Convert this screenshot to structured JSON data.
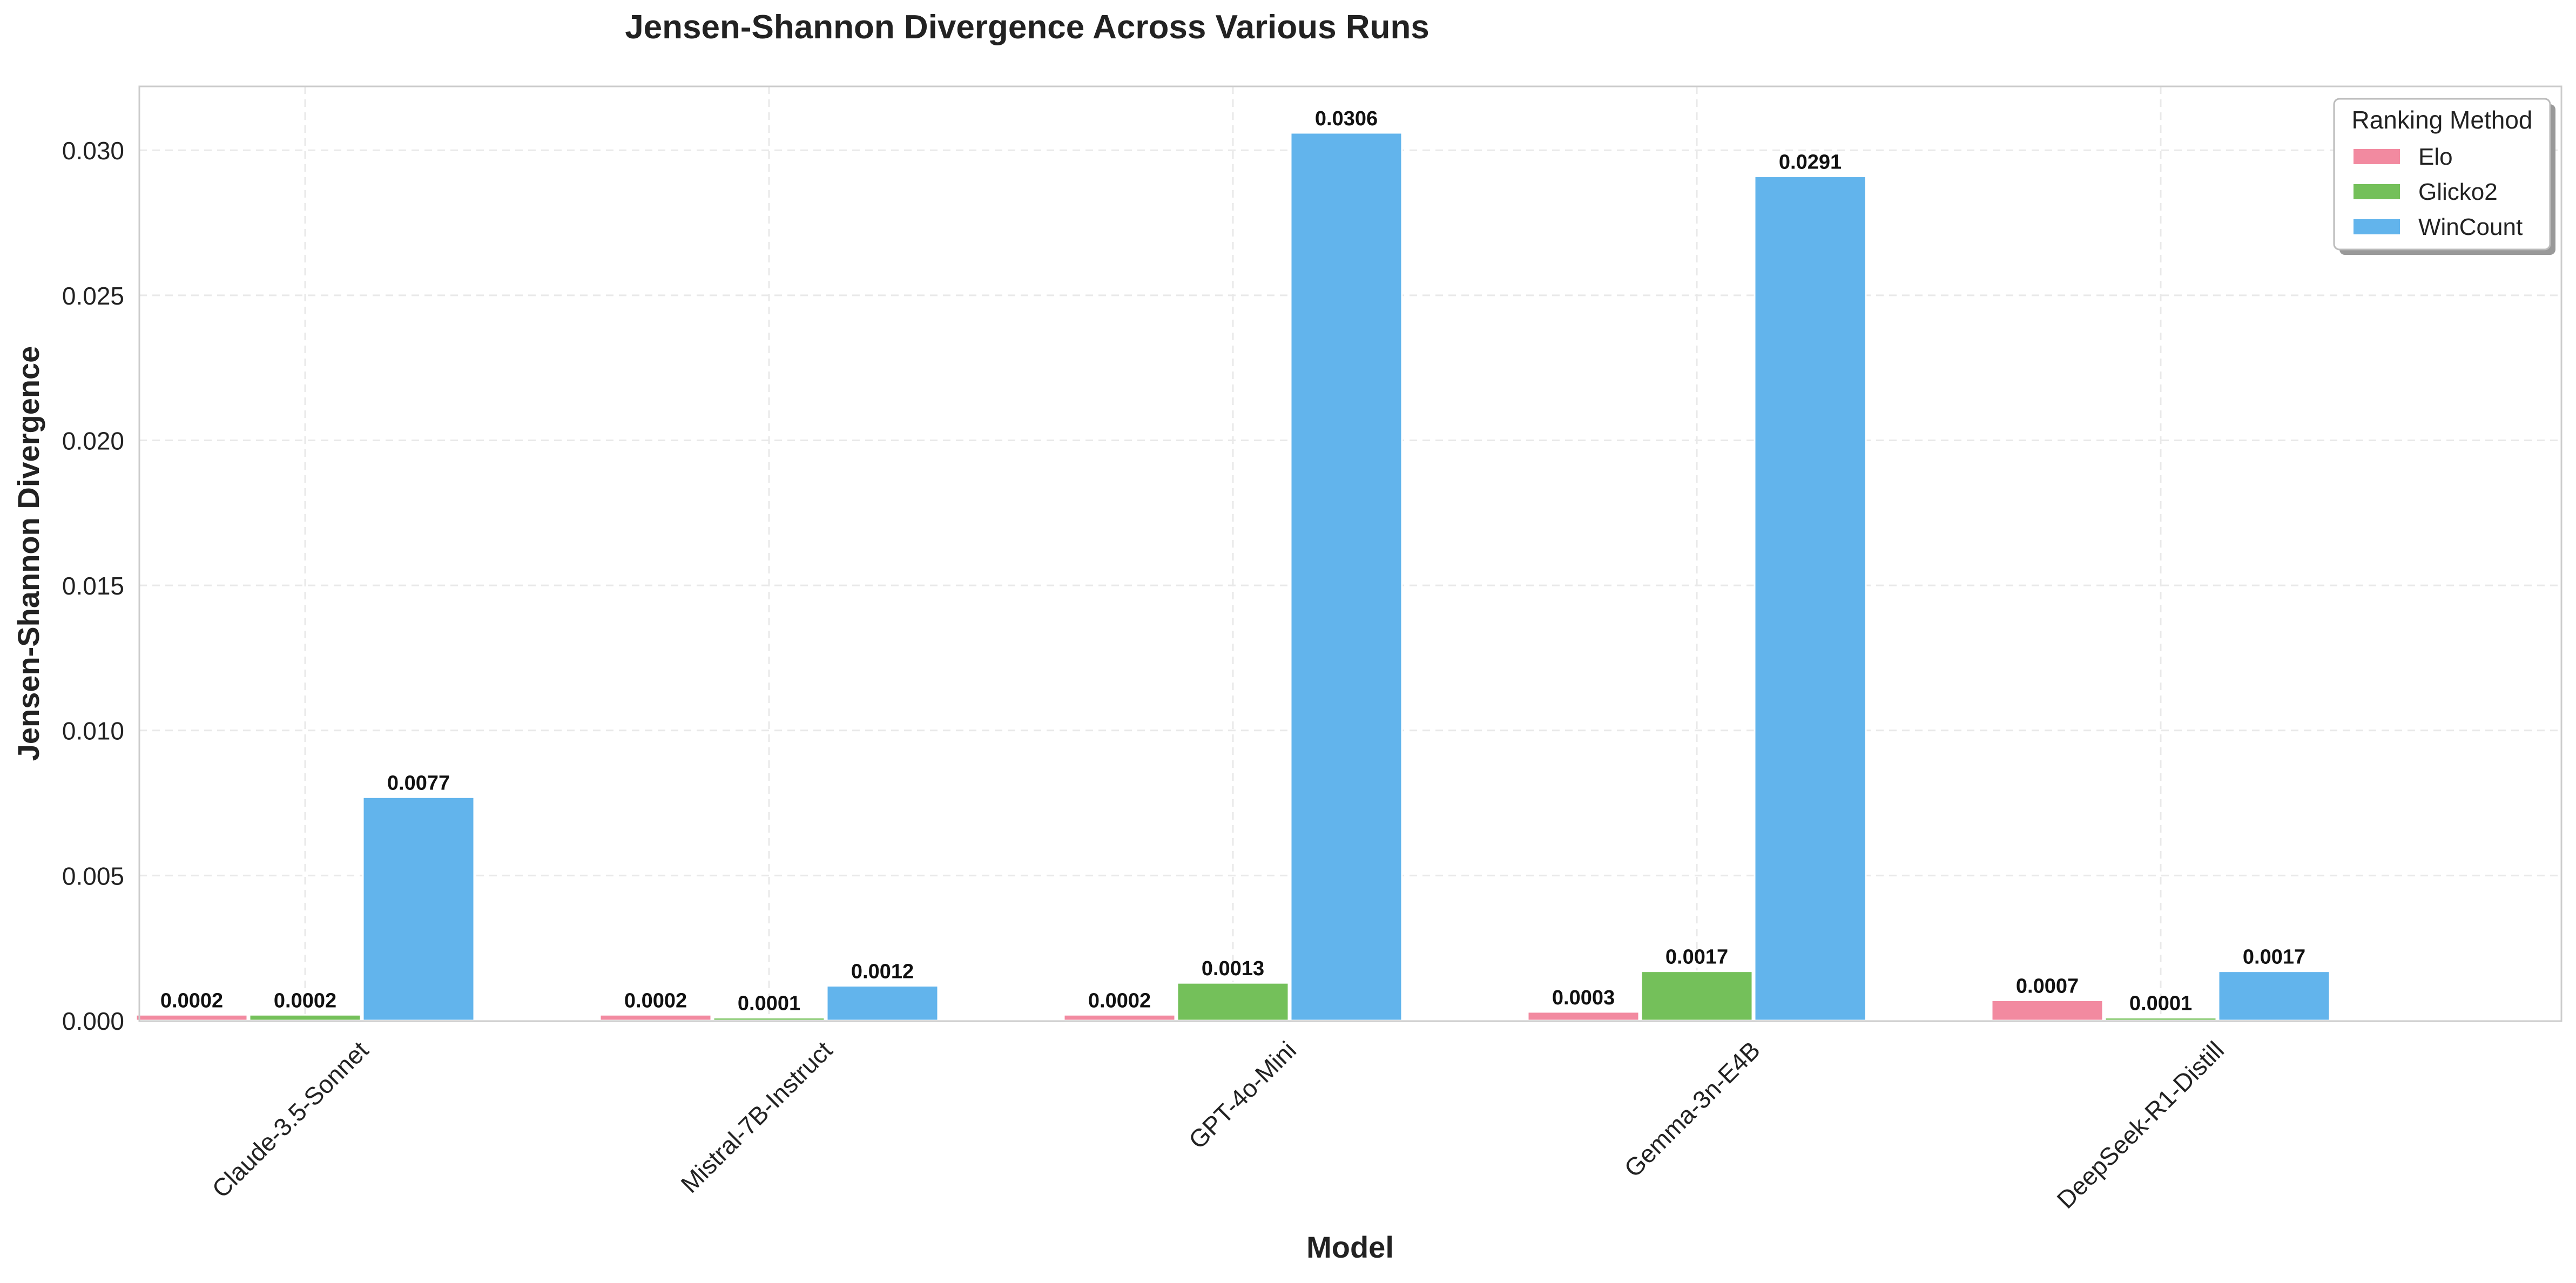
{
  "chart_data": {
    "type": "bar",
    "title": "Jensen-Shannon Divergence Across Various Runs",
    "xlabel": "Model",
    "ylabel": "Jensen-Shannon Divergence",
    "categories": [
      "Claude-3.5-Sonnet",
      "Mistral-7B-Instruct",
      "GPT-4o-Mini",
      "Gemma-3n-E4B",
      "DeepSeek-R1-Distill"
    ],
    "series": [
      {
        "name": "Elo",
        "color": "#f28aa0",
        "values": [
          0.0002,
          0.0002,
          0.0002,
          0.0003,
          0.0007
        ],
        "labels": [
          "0.0002",
          "0.0002",
          "0.0002",
          "0.0003",
          "0.0007"
        ]
      },
      {
        "name": "Glicko2",
        "color": "#74c05a",
        "values": [
          0.0002,
          0.0001,
          0.0013,
          0.0017,
          0.0001
        ],
        "labels": [
          "0.0002",
          "0.0001",
          "0.0013",
          "0.0017",
          "0.0001"
        ]
      },
      {
        "name": "WinCount",
        "color": "#62b4ec",
        "values": [
          0.0077,
          0.0012,
          0.0306,
          0.0291,
          0.0017
        ],
        "labels": [
          "0.0077",
          "0.0012",
          "0.0306",
          "0.0291",
          "0.0017"
        ]
      }
    ],
    "ylim": [
      0,
      0.0322
    ],
    "yticks": [
      0.0,
      0.005,
      0.01,
      0.015,
      0.02,
      0.025,
      0.03
    ],
    "ytick_labels": [
      "0.000",
      "0.005",
      "0.010",
      "0.015",
      "0.020",
      "0.025",
      "0.030"
    ],
    "legend": {
      "title": "Ranking Method",
      "placement": "top-right"
    },
    "grid": true
  }
}
